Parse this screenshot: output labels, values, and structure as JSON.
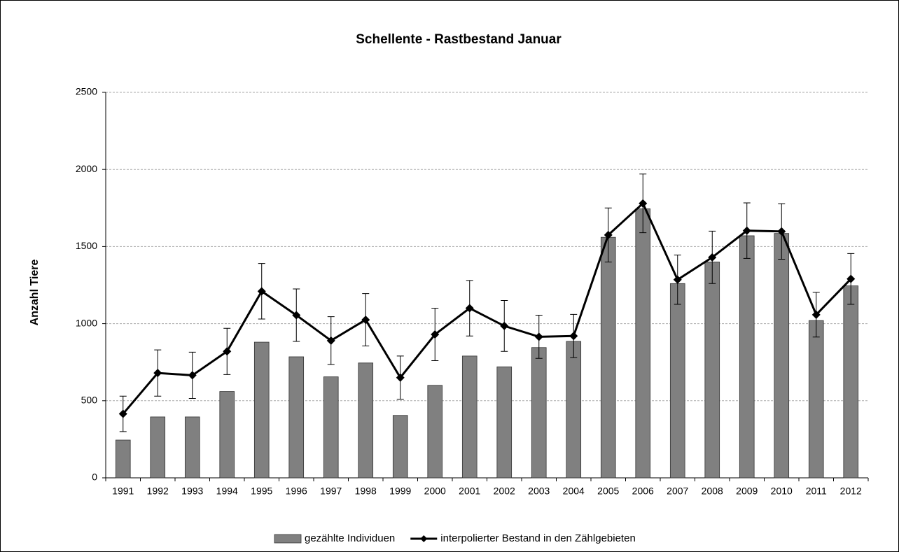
{
  "chart_data": {
    "type": "bar",
    "title": "Schellente - Rastbestand Januar",
    "y_label": "Anzahl Tiere",
    "categories": [
      "1991",
      "1992",
      "1993",
      "1994",
      "1995",
      "1996",
      "1997",
      "1998",
      "1999",
      "2000",
      "2001",
      "2002",
      "2003",
      "2004",
      "2005",
      "2006",
      "2007",
      "2008",
      "2009",
      "2010",
      "2011",
      "2012"
    ],
    "series": [
      {
        "name": "gezählte Individuen",
        "type": "bar",
        "color": "#808080",
        "values": [
          245,
          395,
          395,
          560,
          880,
          785,
          655,
          745,
          405,
          600,
          790,
          720,
          845,
          885,
          1560,
          1745,
          1260,
          1400,
          1570,
          1585,
          1020,
          1245
        ]
      },
      {
        "name": "interpolierter Bestand in den Zählgebieten",
        "type": "line",
        "color": "#000000",
        "values": [
          415,
          680,
          665,
          820,
          1210,
          1055,
          890,
          1025,
          650,
          930,
          1100,
          985,
          915,
          920,
          1575,
          1780,
          1285,
          1430,
          1603,
          1598,
          1058,
          1290
        ],
        "errors": [
          115,
          150,
          150,
          150,
          180,
          170,
          155,
          170,
          140,
          170,
          180,
          165,
          140,
          140,
          175,
          190,
          160,
          170,
          180,
          180,
          145,
          165
        ]
      }
    ],
    "ylim": [
      0,
      2500
    ],
    "yticks": [
      0,
      500,
      1000,
      1500,
      2000,
      2500
    ],
    "grid": true,
    "legend": "bottom"
  }
}
